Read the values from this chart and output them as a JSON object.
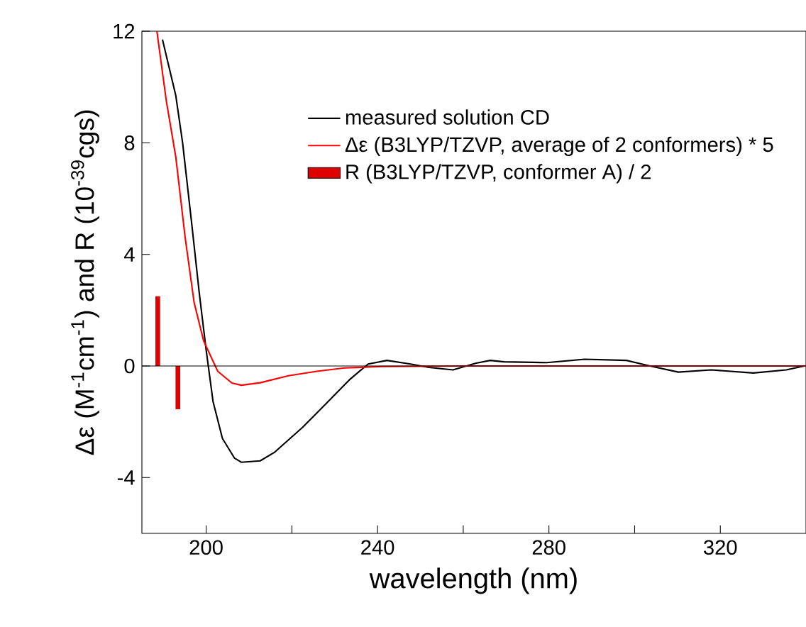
{
  "chart_data": {
    "type": "line",
    "xlabel": "wavelength (nm)",
    "ylabel": "Δε (M$^{-1}$cm$^{-1}$) and R (10$^{-39}$cgs)",
    "xlim": [
      185,
      340
    ],
    "ylim": [
      -6,
      12
    ],
    "xticks": [
      200,
      {
        "value": 220,
        "label": null
      },
      240,
      {
        "value": 260,
        "label": null
      },
      280,
      {
        "value": 300,
        "label": null
      },
      320
    ],
    "yticks": [
      -4,
      0,
      4,
      8,
      12
    ],
    "legend": "top right",
    "ref_lines": [
      {
        "axis": "y",
        "value": 0,
        "color": "#000000"
      }
    ],
    "series": [
      {
        "name": "measured solution CD",
        "color": "#000000",
        "x": [
          189.8,
          192.9,
          194.5,
          196.7,
          198.4,
          200,
          201.6,
          203.8,
          206.6,
          208.2,
          212.6,
          215.9,
          222.5,
          228,
          233.4,
          237.8,
          242.2,
          247.7,
          252,
          257.6,
          263,
          266.3,
          269.5,
          279.5,
          288.3,
          298.1,
          303.6,
          310.2,
          317.9,
          327.7,
          335.4,
          339.6
        ],
        "values": [
          11.7,
          9.7,
          8.0,
          5.0,
          2.6,
          0.57,
          -1.27,
          -2.6,
          -3.3,
          -3.45,
          -3.4,
          -3.1,
          -2.2,
          -1.35,
          -0.5,
          0.07,
          0.2,
          0.07,
          -0.05,
          -0.14,
          0.1,
          0.2,
          0.15,
          0.12,
          0.24,
          0.2,
          0,
          -0.22,
          -0.14,
          -0.25,
          -0.14,
          0
        ]
      },
      {
        "name": "Δε (B3LYP/TZVP, average of 2 conformers) * 5",
        "color": "#ff0000",
        "x": [
          188.5,
          190.7,
          192.9,
          195.1,
          197.2,
          199.4,
          202.7,
          206,
          208.2,
          212.6,
          219.2,
          225.8,
          232.3,
          241.1,
          260,
          300,
          340
        ],
        "values": [
          12,
          9.5,
          7.5,
          4.6,
          2.26,
          0.9,
          -0.19,
          -0.61,
          -0.69,
          -0.6,
          -0.35,
          -0.19,
          -0.07,
          -0.02,
          0,
          0,
          0
        ]
      },
      {
        "name": "R (B3LYP/TZVP, conformer A) / 2",
        "type": "bar",
        "color": "#e00000",
        "x": [
          188.7,
          193.4
        ],
        "values": [
          2.5,
          -1.55
        ]
      }
    ]
  }
}
